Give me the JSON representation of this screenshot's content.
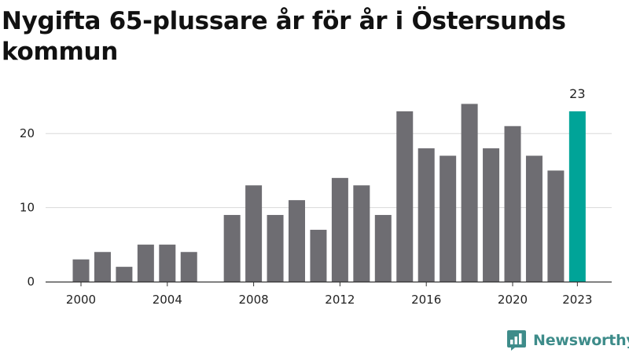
{
  "title": "Nygifta 65-plussare år för år i Östersunds kommun",
  "brand": {
    "name": "Newsworthy",
    "icon": "newsworthy-logo-icon",
    "color": "#3e8c8a"
  },
  "colors": {
    "bar": "#6e6d72",
    "highlight": "#00a498",
    "grid": "#d9d9d9",
    "axis": "#333333"
  },
  "chart_data": {
    "type": "bar",
    "title": "Nygifta 65-plussare år för år i Östersunds kommun",
    "xlabel": "",
    "ylabel": "",
    "x": [
      2000,
      2001,
      2002,
      2003,
      2004,
      2005,
      2006,
      2007,
      2008,
      2009,
      2010,
      2011,
      2012,
      2013,
      2014,
      2015,
      2016,
      2017,
      2018,
      2019,
      2020,
      2021,
      2022,
      2023
    ],
    "values": [
      3,
      4,
      2,
      5,
      5,
      4,
      0,
      9,
      13,
      9,
      11,
      7,
      14,
      13,
      9,
      23,
      18,
      17,
      24,
      18,
      21,
      17,
      15,
      23
    ],
    "highlight": {
      "x": 2023,
      "label": "23"
    },
    "ylim": [
      0,
      25
    ],
    "yticks": [
      0,
      10,
      20
    ],
    "xticks": [
      2000,
      2004,
      2008,
      2012,
      2016,
      2020,
      2023
    ],
    "grid": true,
    "legend": "none"
  }
}
